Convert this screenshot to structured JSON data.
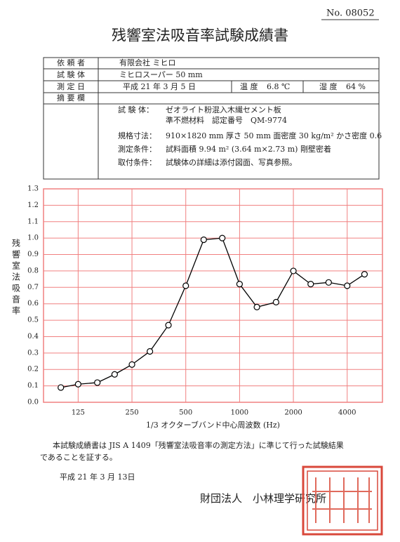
{
  "document_number": "No. 08052",
  "title": "残響室法吸音率試験成績書",
  "info_table": {
    "rows": [
      {
        "label": "依 頼 者",
        "value": "有限会社 ミヒロ"
      },
      {
        "label": "試 験 体",
        "value": "ミヒロスーパー 50 mm"
      },
      {
        "label": "測 定 日",
        "value": "平成 21 年 3 月 5 日",
        "temperature_label": "温 度",
        "temperature": "6.8 ℃",
        "humidity_label": "湿 度",
        "humidity": "64 %"
      },
      {
        "label": "摘 要 欄",
        "lines": [
          {
            "label": "試 験 体：",
            "text": "ゼオライト粉混入木繊セメント板"
          },
          {
            "text": "準不燃材料　認定番号　QM-9774"
          },
          {
            "label": "規格寸法：",
            "text": "910×1820 mm 厚さ 50 mm 面密度 30 kg/m² かさ密度 0.6"
          },
          {
            "label": "測定条件：",
            "text": "試料面積 9.94 m² (3.64 m×2.73 m) 剛壁密着"
          },
          {
            "label": "取付条件：",
            "text": "試験体の詳細は添付図面、写真参照。"
          }
        ]
      }
    ]
  },
  "chart_data": {
    "type": "line",
    "y_label": "残響室法吸音率",
    "x_label": "1/3 オクターブバンド中心周波数 (Hz)",
    "x": [
      100,
      125,
      160,
      200,
      250,
      315,
      400,
      500,
      630,
      800,
      1000,
      1250,
      1600,
      2000,
      2500,
      3150,
      4000,
      5000
    ],
    "values": [
      0.09,
      0.11,
      0.12,
      0.17,
      0.23,
      0.31,
      0.47,
      0.71,
      0.99,
      1.0,
      0.72,
      0.58,
      0.61,
      0.8,
      0.72,
      0.73,
      0.71,
      0.78
    ],
    "color": "#000000",
    "xscale": "log",
    "xlim": [
      80,
      6300
    ],
    "xticks": [
      125,
      250,
      500,
      1000,
      2000,
      4000
    ],
    "ylim": [
      0,
      1.3
    ],
    "yticks": [
      {
        "value": 0,
        "label": "0.0"
      },
      0.1,
      0.2,
      0.3,
      0.4,
      0.5,
      0.6,
      0.7,
      0.8,
      0.9,
      {
        "value": 1,
        "label": "1.0"
      },
      1.1,
      1.2,
      1.3
    ],
    "grid": true,
    "grid_color": "#f08080"
  },
  "statement": [
    "本試験成績書は JIS A 1409「残響室法吸音率の測定方法」に準じて行った試験結果",
    "であることを証する。"
  ],
  "date": "平成 21 年 3 月 13日",
  "issuer": "財団法人　小林理学研究所"
}
